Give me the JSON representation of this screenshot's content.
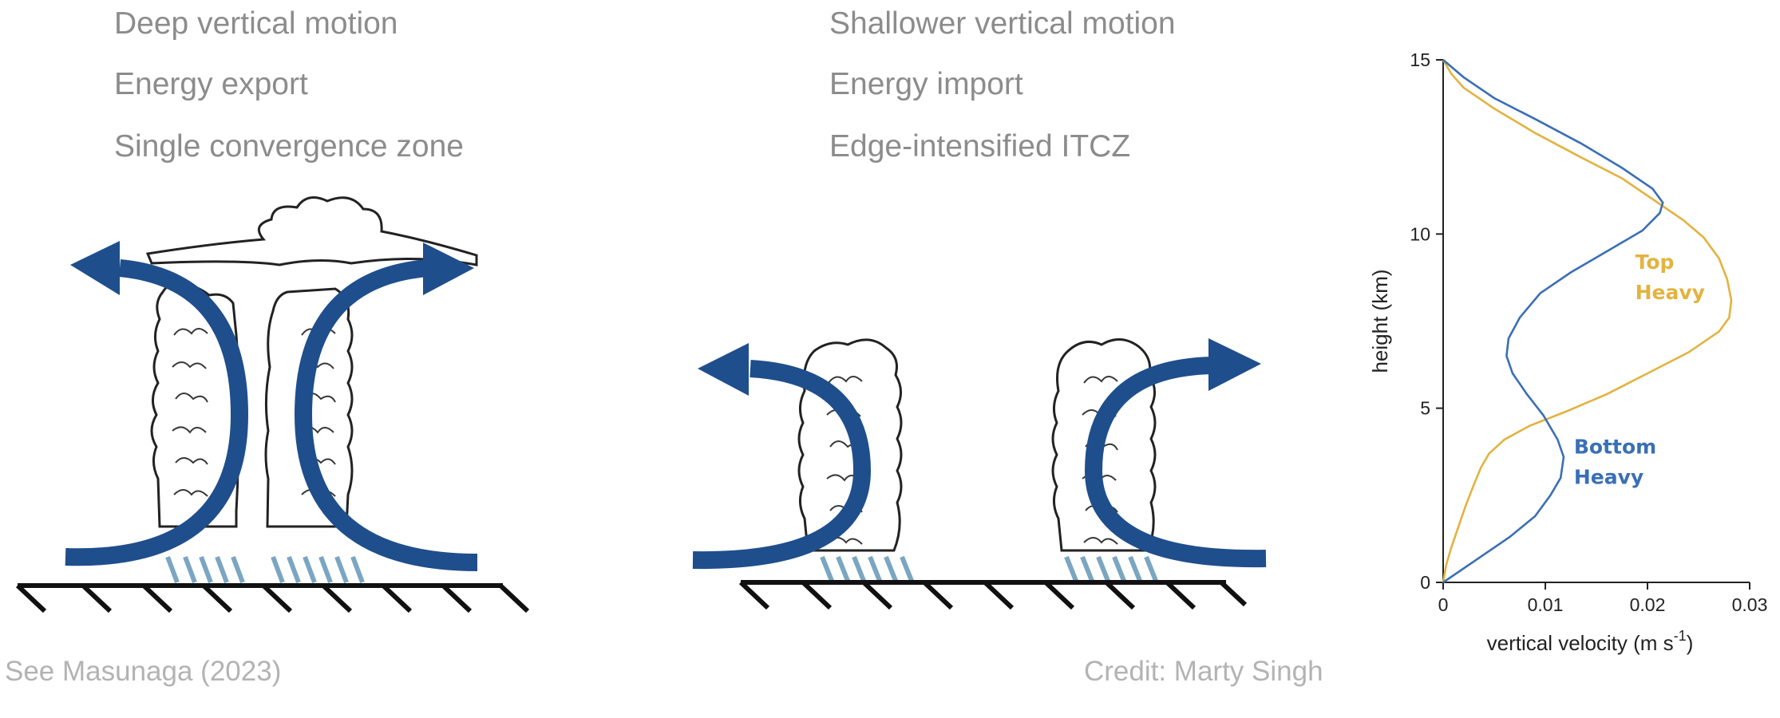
{
  "left_panel": {
    "lines": [
      "Deep vertical motion",
      "Energy export",
      "Single convergence zone"
    ]
  },
  "middle_panel": {
    "lines": [
      "Shallower vertical motion",
      "Energy import",
      "Edge-intensified ITCZ"
    ]
  },
  "footer": {
    "reference": "See Masunaga (2023)",
    "credit": "Credit: Marty Singh"
  },
  "colors": {
    "arrow_blue": "#1f4e8c",
    "rain_blue": "#7aa6c2",
    "top_heavy": "#e3b33f",
    "bottom_heavy": "#3a6fb5",
    "label_gray": "#8c8c8c"
  },
  "chart_data": {
    "type": "line",
    "xlabel": "vertical velocity (m s",
    "xlabel_sup": "-1",
    "xlabel_suffix": ")",
    "ylabel": "height (km)",
    "xlim": [
      0,
      0.03
    ],
    "ylim": [
      0,
      15
    ],
    "x_ticks": [
      0,
      0.01,
      0.02,
      0.03
    ],
    "x_tick_labels": [
      "0",
      "0.01",
      "0.02",
      "0.03"
    ],
    "y_ticks": [
      0,
      5,
      10,
      15
    ],
    "y_tick_labels": [
      "0",
      "5",
      "10",
      "15"
    ],
    "series": [
      {
        "name_lines": [
          "Top",
          "Heavy"
        ],
        "color": "#e3b33f",
        "points": [
          [
            0,
            0
          ],
          [
            0.0003,
            0.5
          ],
          [
            0.0008,
            1.0
          ],
          [
            0.0015,
            1.6
          ],
          [
            0.0022,
            2.2
          ],
          [
            0.003,
            2.8
          ],
          [
            0.0037,
            3.3
          ],
          [
            0.0045,
            3.7
          ],
          [
            0.006,
            4.1
          ],
          [
            0.0085,
            4.5
          ],
          [
            0.012,
            4.9
          ],
          [
            0.016,
            5.4
          ],
          [
            0.02,
            6.0
          ],
          [
            0.024,
            6.6
          ],
          [
            0.027,
            7.2
          ],
          [
            0.028,
            7.6
          ],
          [
            0.0282,
            8.1
          ],
          [
            0.0278,
            8.7
          ],
          [
            0.027,
            9.3
          ],
          [
            0.0255,
            9.9
          ],
          [
            0.0235,
            10.4
          ],
          [
            0.021,
            10.9
          ],
          [
            0.0175,
            11.6
          ],
          [
            0.0135,
            12.2
          ],
          [
            0.009,
            12.9
          ],
          [
            0.005,
            13.6
          ],
          [
            0.002,
            14.2
          ],
          [
            0.0008,
            14.6
          ],
          [
            0,
            15
          ]
        ]
      },
      {
        "name_lines": [
          "Bottom",
          "Heavy"
        ],
        "color": "#3a6fb5",
        "points": [
          [
            0,
            0
          ],
          [
            0.003,
            0.6
          ],
          [
            0.0065,
            1.3
          ],
          [
            0.009,
            1.9
          ],
          [
            0.0105,
            2.5
          ],
          [
            0.0115,
            3.0
          ],
          [
            0.0118,
            3.6
          ],
          [
            0.0112,
            4.1
          ],
          [
            0.0098,
            4.8
          ],
          [
            0.0082,
            5.4
          ],
          [
            0.0068,
            6.0
          ],
          [
            0.0062,
            6.5
          ],
          [
            0.0064,
            7.0
          ],
          [
            0.0075,
            7.6
          ],
          [
            0.0095,
            8.3
          ],
          [
            0.0125,
            8.9
          ],
          [
            0.016,
            9.5
          ],
          [
            0.0195,
            10.1
          ],
          [
            0.0212,
            10.6
          ],
          [
            0.0215,
            10.9
          ],
          [
            0.0205,
            11.3
          ],
          [
            0.0175,
            11.9
          ],
          [
            0.0135,
            12.6
          ],
          [
            0.009,
            13.3
          ],
          [
            0.005,
            13.9
          ],
          [
            0.002,
            14.5
          ],
          [
            0,
            15
          ]
        ]
      }
    ]
  }
}
